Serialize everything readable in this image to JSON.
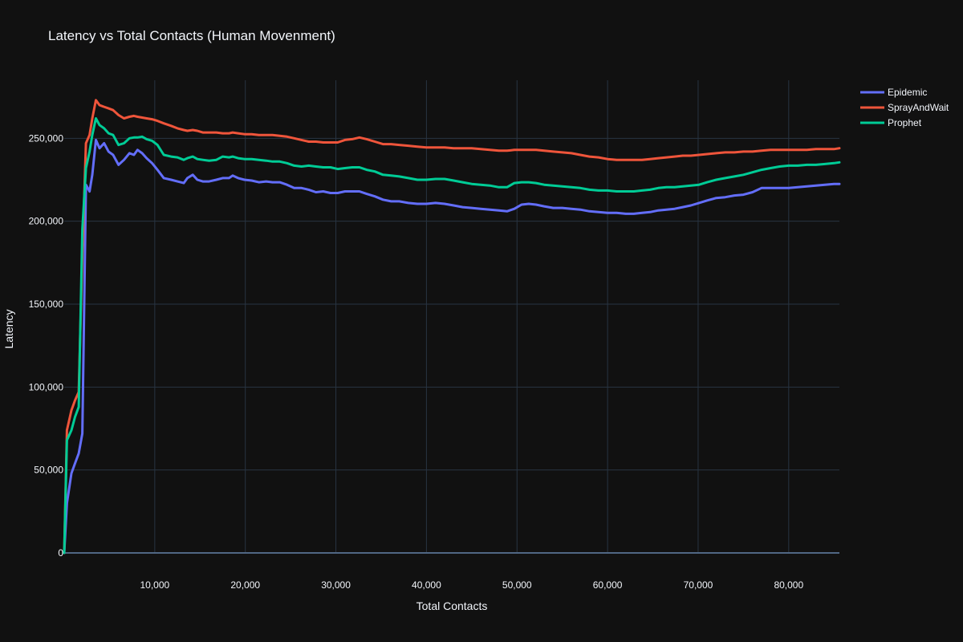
{
  "chart_data": {
    "type": "line",
    "title": "Latency vs Total Contacts (Human Movenment)",
    "xlabel": "Total Contacts",
    "ylabel": "Latency",
    "xlim": [
      0,
      85600
    ],
    "ylim": [
      0,
      285000
    ],
    "xticks": [
      10000,
      20000,
      30000,
      40000,
      50000,
      60000,
      70000,
      80000
    ],
    "xtick_labels": [
      "10,000",
      "20,000",
      "30,000",
      "40,000",
      "50,000",
      "60,000",
      "70,000",
      "80,000"
    ],
    "yticks": [
      0,
      50000,
      100000,
      150000,
      200000,
      250000
    ],
    "ytick_labels": [
      "0",
      "50,000",
      "100,000",
      "150,000",
      "200,000",
      "250,000"
    ],
    "grid": true,
    "legend_position": "top-right",
    "background": "#111111",
    "grid_color": "#283442",
    "text_color": "#f2f5fa",
    "series": [
      {
        "name": "Epidemic",
        "color": "#636efa",
        "x": [
          0,
          300,
          800,
          1200,
          1600,
          2000,
          2400,
          2800,
          3100,
          3500,
          3900,
          4400,
          4900,
          5400,
          6000,
          6600,
          7200,
          7700,
          8100,
          8600,
          9100,
          9700,
          10300,
          11000,
          11800,
          12500,
          13200,
          13600,
          14200,
          14700,
          15300,
          16000,
          16800,
          17500,
          18200,
          18600,
          19200,
          19900,
          20700,
          21500,
          22300,
          23000,
          23800,
          24600,
          25400,
          26200,
          27000,
          27800,
          28600,
          29400,
          30200,
          31000,
          31800,
          32600,
          33400,
          34300,
          35200,
          36100,
          37000,
          38000,
          39000,
          40000,
          41000,
          42000,
          43000,
          44000,
          45000,
          46000,
          47000,
          48000,
          48900,
          49700,
          50500,
          51300,
          52100,
          53000,
          54000,
          55000,
          56000,
          57000,
          58000,
          59000,
          60000,
          61000,
          62000,
          62900,
          63800,
          64700,
          65600,
          66500,
          67400,
          68300,
          69200,
          70100,
          71000,
          72000,
          73000,
          74000,
          75000,
          76000,
          77000,
          78000,
          79000,
          80000,
          81000,
          82000,
          83000,
          84000,
          85000,
          85600
        ],
        "y": [
          0,
          30000,
          48000,
          54000,
          60000,
          72000,
          222000,
          218000,
          228000,
          249000,
          244000,
          247000,
          242000,
          240000,
          234000,
          237000,
          241000,
          240000,
          243000,
          241000,
          238000,
          235000,
          231000,
          226000,
          225000,
          224000,
          223000,
          226000,
          228000,
          225000,
          224000,
          224000,
          225000,
          226000,
          226000,
          227500,
          226000,
          225000,
          224500,
          223500,
          224000,
          223500,
          223500,
          222000,
          220000,
          220000,
          219000,
          217500,
          218000,
          217000,
          217000,
          218000,
          218000,
          218000,
          216500,
          215000,
          213000,
          212000,
          212000,
          211000,
          210500,
          210500,
          211000,
          210500,
          209500,
          208500,
          208000,
          207500,
          207000,
          206500,
          206000,
          207500,
          210000,
          210500,
          210000,
          209000,
          208000,
          208000,
          207500,
          207000,
          206000,
          205500,
          205000,
          205000,
          204500,
          204500,
          205000,
          205500,
          206500,
          207000,
          207500,
          208500,
          209500,
          211000,
          212500,
          214000,
          214500,
          215500,
          216000,
          217500,
          220000,
          220000,
          220000,
          220000,
          220500,
          221000,
          221500,
          222000,
          222500,
          222500
        ]
      },
      {
        "name": "SprayAndWait",
        "color": "#ef553b",
        "x": [
          0,
          300,
          800,
          1200,
          1600,
          2000,
          2400,
          2800,
          3100,
          3500,
          3900,
          4400,
          4900,
          5400,
          6000,
          6600,
          7200,
          7700,
          8100,
          8600,
          9100,
          9700,
          10300,
          11000,
          11800,
          12500,
          13200,
          13600,
          14200,
          14700,
          15300,
          16000,
          16800,
          17500,
          18200,
          18600,
          19200,
          19900,
          20700,
          21500,
          22300,
          23000,
          23800,
          24600,
          25400,
          26200,
          27000,
          27800,
          28600,
          29400,
          30200,
          31000,
          31800,
          32600,
          33400,
          34300,
          35200,
          36100,
          37000,
          38000,
          39000,
          40000,
          41000,
          42000,
          43000,
          44000,
          45000,
          46000,
          47000,
          48000,
          48900,
          49700,
          50500,
          51300,
          52100,
          53000,
          54000,
          55000,
          56000,
          57000,
          58000,
          59000,
          60000,
          61000,
          62000,
          62900,
          63800,
          64700,
          65600,
          66500,
          67400,
          68300,
          69200,
          70100,
          71000,
          72000,
          73000,
          74000,
          75000,
          76000,
          77000,
          78000,
          79000,
          80000,
          81000,
          82000,
          83000,
          84000,
          85000,
          85600
        ],
        "y": [
          0,
          74000,
          86000,
          92000,
          97000,
          180000,
          247000,
          252000,
          262000,
          273000,
          270000,
          269000,
          268000,
          267000,
          264000,
          262000,
          263000,
          263500,
          263000,
          262500,
          262000,
          261500,
          260500,
          259000,
          257500,
          256000,
          255000,
          254500,
          255000,
          254500,
          253500,
          253500,
          253500,
          253000,
          253000,
          253500,
          253000,
          252500,
          252500,
          252000,
          252000,
          252000,
          251500,
          251000,
          250000,
          249000,
          248000,
          248000,
          247500,
          247500,
          247500,
          249000,
          249500,
          250500,
          249500,
          248000,
          246500,
          246500,
          246000,
          245500,
          245000,
          244500,
          244500,
          244500,
          244000,
          244000,
          244000,
          243500,
          243000,
          242500,
          242500,
          243000,
          243000,
          243000,
          243000,
          242500,
          242000,
          241500,
          241000,
          240000,
          239000,
          238500,
          237500,
          237000,
          237000,
          237000,
          237000,
          237500,
          238000,
          238500,
          239000,
          239500,
          239500,
          240000,
          240500,
          241000,
          241500,
          241500,
          242000,
          242000,
          242500,
          243000,
          243000,
          243000,
          243000,
          243000,
          243500,
          243500,
          243500,
          244000
        ]
      },
      {
        "name": "Prophet",
        "color": "#00cc96",
        "x": [
          0,
          300,
          800,
          1200,
          1600,
          2000,
          2400,
          2800,
          3100,
          3500,
          3900,
          4400,
          4900,
          5400,
          6000,
          6600,
          7200,
          7700,
          8100,
          8600,
          9100,
          9700,
          10300,
          11000,
          11800,
          12500,
          13200,
          13600,
          14200,
          14700,
          15300,
          16000,
          16800,
          17500,
          18200,
          18600,
          19200,
          19900,
          20700,
          21500,
          22300,
          23000,
          23800,
          24600,
          25400,
          26200,
          27000,
          27800,
          28600,
          29400,
          30200,
          31000,
          31800,
          32600,
          33400,
          34300,
          35200,
          36100,
          37000,
          38000,
          39000,
          40000,
          41000,
          42000,
          43000,
          44000,
          45000,
          46000,
          47000,
          48000,
          48900,
          49700,
          50500,
          51300,
          52100,
          53000,
          54000,
          55000,
          56000,
          57000,
          58000,
          59000,
          60000,
          61000,
          62000,
          62900,
          63800,
          64700,
          65600,
          66500,
          67400,
          68300,
          69200,
          70100,
          71000,
          72000,
          73000,
          74000,
          75000,
          76000,
          77000,
          78000,
          79000,
          80000,
          81000,
          82000,
          83000,
          84000,
          85000,
          85600
        ],
        "y": [
          0,
          68000,
          74000,
          82000,
          88000,
          195000,
          232000,
          242000,
          252000,
          262000,
          258000,
          256000,
          253000,
          252000,
          246000,
          247000,
          250000,
          250500,
          250500,
          251000,
          249500,
          248500,
          246000,
          240000,
          239000,
          238500,
          237000,
          238000,
          239000,
          237500,
          237000,
          236500,
          237000,
          239000,
          238500,
          239000,
          238000,
          237500,
          237500,
          237000,
          236500,
          236000,
          236000,
          235000,
          233500,
          233000,
          233500,
          233000,
          232500,
          232500,
          231500,
          232000,
          232500,
          232500,
          231000,
          230000,
          228000,
          227500,
          227000,
          226000,
          225000,
          225000,
          225500,
          225500,
          224500,
          223500,
          222500,
          222000,
          221500,
          220500,
          220500,
          223000,
          223500,
          223500,
          223000,
          222000,
          221500,
          221000,
          220500,
          220000,
          219000,
          218500,
          218500,
          218000,
          218000,
          218000,
          218500,
          219000,
          220000,
          220500,
          220500,
          221000,
          221500,
          222000,
          223500,
          225000,
          226000,
          227000,
          228000,
          229500,
          231000,
          232000,
          233000,
          233500,
          233500,
          234000,
          234000,
          234500,
          235000,
          235500
        ]
      }
    ]
  }
}
